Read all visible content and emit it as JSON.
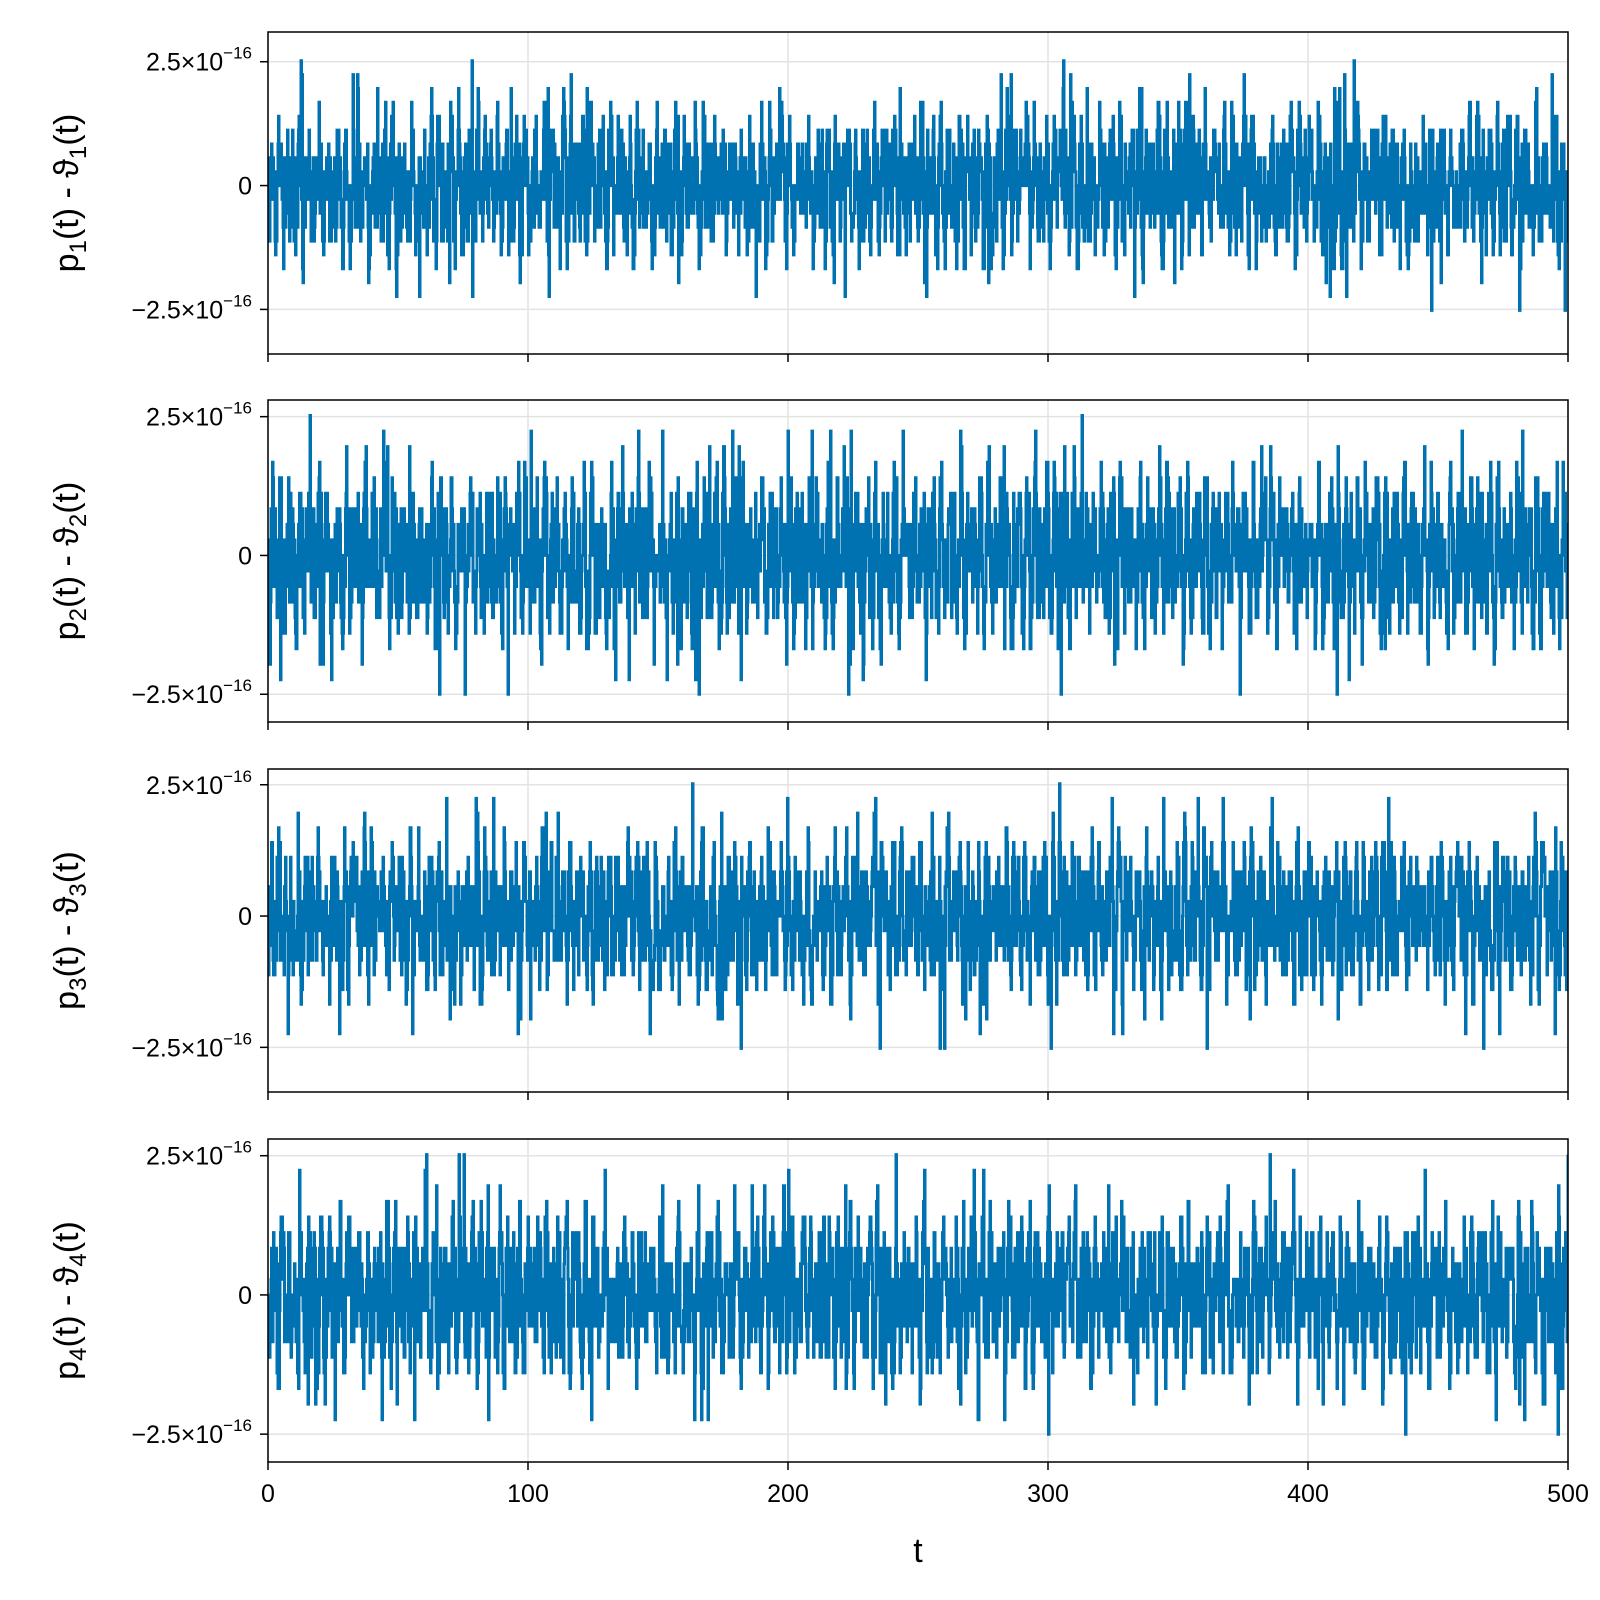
{
  "chart_data": [
    {
      "type": "line",
      "ylabel": {
        "main": "p",
        "sub": "1",
        "mid": "(t) - ϑ",
        "sub2": "1",
        "tail": "(t)"
      },
      "xlim": [
        0,
        500
      ],
      "ylim": [
        -3.4e-16,
        3.1e-16
      ],
      "xticks": [
        0,
        100,
        200,
        300,
        400,
        500
      ],
      "yticks": [
        {
          "value": 2.5e-16,
          "label": "2.5×10",
          "exp": "−16"
        },
        {
          "value": 0,
          "label": "0",
          "exp": ""
        },
        {
          "value": -2.5e-16,
          "label": "−2.5×10",
          "exp": "−16"
        }
      ],
      "show_xtick_labels": false,
      "grid": true,
      "series": [
        {
          "color": "#0072b2",
          "x_range": [
            0,
            500
          ],
          "amplitude_typical": 1e-16,
          "peak_max": 2.8e-16,
          "peak_min": -3.05e-16,
          "seed": 11
        }
      ]
    },
    {
      "type": "line",
      "ylabel": {
        "main": "p",
        "sub": "2",
        "mid": "(t) - ϑ",
        "sub2": "2",
        "tail": "(t)"
      },
      "xlim": [
        0,
        500
      ],
      "ylim": [
        -3e-16,
        2.8e-16
      ],
      "xticks": [
        0,
        100,
        200,
        300,
        400,
        500
      ],
      "yticks": [
        {
          "value": 2.5e-16,
          "label": "2.5×10",
          "exp": "−16"
        },
        {
          "value": 0,
          "label": "0",
          "exp": ""
        },
        {
          "value": -2.5e-16,
          "label": "−2.5×10",
          "exp": "−16"
        }
      ],
      "show_xtick_labels": false,
      "grid": true,
      "series": [
        {
          "color": "#0072b2",
          "x_range": [
            0,
            500
          ],
          "amplitude_typical": 1e-16,
          "peak_max": 2.8e-16,
          "peak_min": -2.5e-16,
          "seed": 23
        }
      ]
    },
    {
      "type": "line",
      "ylabel": {
        "main": "p",
        "sub": "3",
        "mid": "(t) - ϑ",
        "sub2": "3",
        "tail": "(t)"
      },
      "xlim": [
        0,
        500
      ],
      "ylim": [
        -3.35e-16,
        2.8e-16
      ],
      "xticks": [
        0,
        100,
        200,
        300,
        400,
        500
      ],
      "yticks": [
        {
          "value": 2.5e-16,
          "label": "2.5×10",
          "exp": "−16"
        },
        {
          "value": 0,
          "label": "0",
          "exp": ""
        },
        {
          "value": -2.5e-16,
          "label": "−2.5×10",
          "exp": "−16"
        }
      ],
      "show_xtick_labels": false,
      "grid": true,
      "series": [
        {
          "color": "#0072b2",
          "x_range": [
            0,
            500
          ],
          "amplitude_typical": 1e-16,
          "peak_max": 2.8e-16,
          "peak_min": -3.05e-16,
          "seed": 37
        }
      ]
    },
    {
      "type": "line",
      "ylabel": {
        "main": "p",
        "sub": "4",
        "mid": "(t) - ϑ",
        "sub2": "4",
        "tail": "(t)"
      },
      "xlim": [
        0,
        500
      ],
      "ylim": [
        -3e-16,
        2.8e-16
      ],
      "xticks": [
        0,
        100,
        200,
        300,
        400,
        500
      ],
      "yticks": [
        {
          "value": 2.5e-16,
          "label": "2.5×10",
          "exp": "−16"
        },
        {
          "value": 0,
          "label": "0",
          "exp": ""
        },
        {
          "value": -2.5e-16,
          "label": "−2.5×10",
          "exp": "−16"
        }
      ],
      "show_xtick_labels": true,
      "xlabel": "t",
      "grid": true,
      "series": [
        {
          "color": "#0072b2",
          "x_range": [
            0,
            500
          ],
          "amplitude_typical": 1e-16,
          "peak_max": 2.8e-16,
          "peak_min": -2.5e-16,
          "seed": 53
        }
      ]
    }
  ]
}
